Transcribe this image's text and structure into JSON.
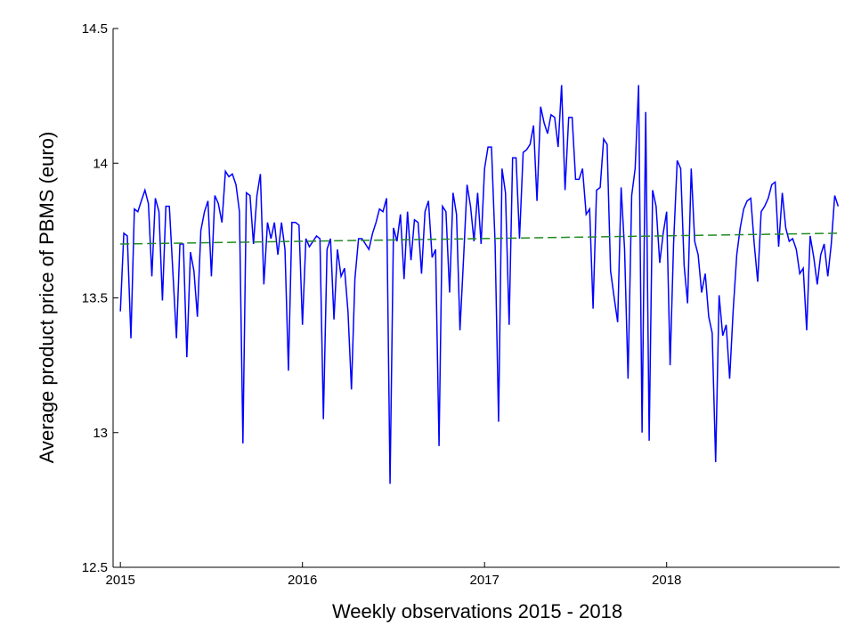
{
  "chart_data": {
    "type": "line",
    "xlabel": "Weekly observations 2015 - 2018",
    "ylabel": "Average product price of PBMS (euro)",
    "xlim": [
      2014.96,
      2018.95
    ],
    "xticks": [
      2015,
      2016,
      2017,
      2018
    ],
    "ylim": [
      12.5,
      14.5
    ],
    "yticks": [
      12.5,
      13,
      13.5,
      14,
      14.5
    ],
    "series": [
      {
        "color": "#0000ff",
        "dash": false,
        "x": [
          2015.0,
          2015.019,
          2015.038,
          2015.058,
          2015.077,
          2015.096,
          2015.115,
          2015.135,
          2015.154,
          2015.173,
          2015.192,
          2015.212,
          2015.231,
          2015.25,
          2015.269,
          2015.288,
          2015.308,
          2015.327,
          2015.346,
          2015.365,
          2015.385,
          2015.404,
          2015.423,
          2015.442,
          2015.462,
          2015.481,
          2015.5,
          2015.519,
          2015.538,
          2015.558,
          2015.577,
          2015.596,
          2015.615,
          2015.635,
          2015.654,
          2015.673,
          2015.692,
          2015.712,
          2015.731,
          2015.75,
          2015.769,
          2015.788,
          2015.808,
          2015.827,
          2015.846,
          2015.865,
          2015.885,
          2015.904,
          2015.923,
          2015.942,
          2015.962,
          2015.981,
          2016.0,
          2016.019,
          2016.038,
          2016.058,
          2016.077,
          2016.096,
          2016.115,
          2016.135,
          2016.154,
          2016.173,
          2016.192,
          2016.212,
          2016.231,
          2016.25,
          2016.269,
          2016.288,
          2016.308,
          2016.327,
          2016.346,
          2016.365,
          2016.385,
          2016.404,
          2016.423,
          2016.442,
          2016.462,
          2016.481,
          2016.5,
          2016.519,
          2016.538,
          2016.558,
          2016.577,
          2016.596,
          2016.615,
          2016.635,
          2016.654,
          2016.673,
          2016.692,
          2016.712,
          2016.731,
          2016.75,
          2016.769,
          2016.788,
          2016.808,
          2016.827,
          2016.846,
          2016.865,
          2016.885,
          2016.904,
          2016.923,
          2016.942,
          2016.962,
          2016.981,
          2017.0,
          2017.019,
          2017.038,
          2017.058,
          2017.077,
          2017.096,
          2017.115,
          2017.135,
          2017.154,
          2017.173,
          2017.192,
          2017.212,
          2017.231,
          2017.25,
          2017.269,
          2017.288,
          2017.308,
          2017.327,
          2017.346,
          2017.365,
          2017.385,
          2017.404,
          2017.423,
          2017.442,
          2017.462,
          2017.481,
          2017.5,
          2017.519,
          2017.538,
          2017.558,
          2017.577,
          2017.596,
          2017.615,
          2017.635,
          2017.654,
          2017.673,
          2017.692,
          2017.712,
          2017.731,
          2017.75,
          2017.769,
          2017.788,
          2017.808,
          2017.827,
          2017.846,
          2017.865,
          2017.885,
          2017.904,
          2017.923,
          2017.942,
          2017.962,
          2017.981,
          2018.0,
          2018.019,
          2018.038,
          2018.058,
          2018.077,
          2018.096,
          2018.115,
          2018.135,
          2018.154,
          2018.173,
          2018.192,
          2018.212,
          2018.231,
          2018.25,
          2018.269,
          2018.288,
          2018.308,
          2018.327,
          2018.346,
          2018.365,
          2018.385,
          2018.404,
          2018.423,
          2018.442,
          2018.462,
          2018.481,
          2018.5,
          2018.519,
          2018.538,
          2018.558,
          2018.577,
          2018.596,
          2018.615,
          2018.635,
          2018.654,
          2018.673,
          2018.692,
          2018.712,
          2018.731,
          2018.75,
          2018.769,
          2018.788,
          2018.808,
          2018.827,
          2018.846,
          2018.865,
          2018.885,
          2018.904,
          2018.923,
          2018.942
        ],
        "values": [
          13.45,
          13.74,
          13.73,
          13.35,
          13.83,
          13.82,
          13.86,
          13.9,
          13.85,
          13.58,
          13.87,
          13.82,
          13.49,
          13.84,
          13.84,
          13.6,
          13.35,
          13.7,
          13.7,
          13.28,
          13.67,
          13.6,
          13.43,
          13.75,
          13.82,
          13.86,
          13.58,
          13.88,
          13.85,
          13.78,
          13.97,
          13.95,
          13.96,
          13.92,
          13.82,
          12.96,
          13.89,
          13.88,
          13.7,
          13.88,
          13.96,
          13.55,
          13.78,
          13.72,
          13.78,
          13.66,
          13.78,
          13.68,
          13.23,
          13.78,
          13.78,
          13.77,
          13.4,
          13.72,
          13.69,
          13.71,
          13.73,
          13.72,
          13.05,
          13.68,
          13.72,
          13.42,
          13.68,
          13.58,
          13.61,
          13.45,
          13.16,
          13.57,
          13.72,
          13.72,
          13.7,
          13.68,
          13.74,
          13.78,
          13.83,
          13.82,
          13.87,
          12.81,
          13.76,
          13.71,
          13.81,
          13.57,
          13.82,
          13.64,
          13.79,
          13.78,
          13.59,
          13.82,
          13.86,
          13.65,
          13.68,
          12.95,
          13.84,
          13.82,
          13.52,
          13.89,
          13.81,
          13.38,
          13.65,
          13.92,
          13.84,
          13.71,
          13.89,
          13.7,
          13.98,
          14.06,
          14.06,
          13.7,
          13.04,
          13.98,
          13.89,
          13.4,
          14.02,
          14.02,
          13.72,
          14.04,
          14.05,
          14.07,
          14.14,
          13.86,
          14.21,
          14.15,
          14.11,
          14.18,
          14.17,
          14.06,
          14.29,
          13.9,
          14.17,
          14.17,
          13.94,
          13.94,
          13.98,
          13.81,
          13.83,
          13.46,
          13.9,
          13.91,
          14.09,
          14.07,
          13.6,
          13.5,
          13.41,
          13.91,
          13.68,
          13.2,
          13.88,
          13.98,
          14.29,
          13.0,
          14.19,
          12.97,
          13.9,
          13.84,
          13.63,
          13.74,
          13.82,
          13.25,
          13.7,
          14.01,
          13.98,
          13.62,
          13.48,
          13.98,
          13.71,
          13.66,
          13.52,
          13.59,
          13.43,
          13.37,
          12.89,
          13.51,
          13.36,
          13.4,
          13.2,
          13.45,
          13.66,
          13.76,
          13.83,
          13.86,
          13.87,
          13.7,
          13.56,
          13.82,
          13.84,
          13.87,
          13.92,
          13.93,
          13.69,
          13.89,
          13.76,
          13.71,
          13.72,
          13.68,
          13.59,
          13.61,
          13.38,
          13.73,
          13.65,
          13.55,
          13.66,
          13.7,
          13.58,
          13.7,
          13.88,
          13.84
        ]
      },
      {
        "color": "#228b22",
        "dash": true,
        "x": [
          2015.0,
          2018.942
        ],
        "values": [
          13.7,
          13.74
        ]
      }
    ]
  }
}
